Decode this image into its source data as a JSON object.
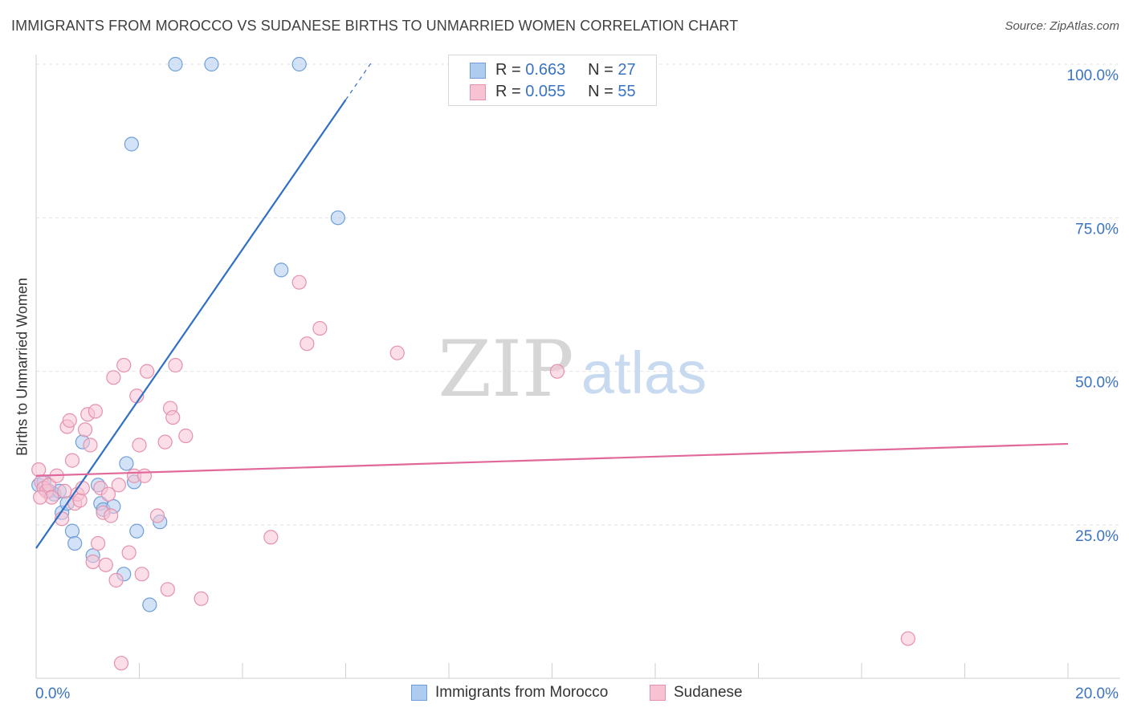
{
  "header": {
    "title": "IMMIGRANTS FROM MOROCCO VS SUDANESE BIRTHS TO UNMARRIED WOMEN CORRELATION CHART",
    "source": "Source: ZipAtlas.com"
  },
  "watermark": {
    "zip": "ZIP",
    "atlas": "atlas"
  },
  "stats_legend": [
    {
      "r_label": "R =",
      "r_value": "0.663",
      "n_label": "N =",
      "n_value": "27",
      "color": "#aecbf0",
      "border": "#6f9fd8"
    },
    {
      "r_label": "R =",
      "r_value": "0.055",
      "n_label": "N =",
      "n_value": "55",
      "color": "#f7c3d3",
      "border": "#e591ad"
    }
  ],
  "chart_data": {
    "type": "scatter",
    "title": "IMMIGRANTS FROM MOROCCO VS SUDANESE BIRTHS TO UNMARRIED WOMEN CORRELATION CHART",
    "xlabel": "",
    "ylabel": "Births to Unmarried Women",
    "xlim": [
      0,
      20
    ],
    "ylim": [
      0,
      105
    ],
    "x_ticks": [
      0,
      2,
      4,
      6,
      8,
      10,
      12,
      14,
      16,
      18,
      20
    ],
    "x_tick_labels": [
      {
        "value": 0,
        "label": "0.0%"
      },
      {
        "value": 20,
        "label": "20.0%"
      }
    ],
    "y_tick_labels": [
      {
        "value": 25,
        "label": "25.0%"
      },
      {
        "value": 50,
        "label": "50.0%"
      },
      {
        "value": 75,
        "label": "75.0%"
      },
      {
        "value": 100,
        "label": "100.0%"
      }
    ],
    "gridlines": [
      25,
      50,
      75,
      100
    ],
    "series": [
      {
        "name": "Immigrants from Morocco",
        "color": "#aecbf0",
        "stroke": "#6f9fd8",
        "line_color": "#2f6fc4",
        "trend": {
          "x0": 0,
          "y0": 21.2,
          "x1": 6.0,
          "y1": 94.2,
          "dash_to_x": 6.5,
          "dash_to_y": 100.3
        },
        "points": [
          [
            0.05,
            31.5
          ],
          [
            0.15,
            32
          ],
          [
            0.25,
            30.5
          ],
          [
            0.35,
            30
          ],
          [
            0.45,
            30.5
          ],
          [
            0.5,
            27
          ],
          [
            0.6,
            28.5
          ],
          [
            0.7,
            24
          ],
          [
            0.75,
            22
          ],
          [
            0.9,
            38.5
          ],
          [
            1.1,
            20
          ],
          [
            1.2,
            31.5
          ],
          [
            1.25,
            28.5
          ],
          [
            1.3,
            27.5
          ],
          [
            1.5,
            28
          ],
          [
            1.7,
            17
          ],
          [
            1.75,
            35
          ],
          [
            1.85,
            87
          ],
          [
            1.9,
            32
          ],
          [
            1.95,
            24
          ],
          [
            2.2,
            12
          ],
          [
            2.4,
            25.5
          ],
          [
            2.7,
            100
          ],
          [
            3.4,
            100
          ],
          [
            4.75,
            66.5
          ],
          [
            5.1,
            100
          ],
          [
            5.85,
            75
          ]
        ]
      },
      {
        "name": "Sudanese",
        "color": "#f7c3d3",
        "stroke": "#e591ad",
        "line_color": "#e0689a",
        "trend": {
          "x0": 0,
          "y0": 33.0,
          "x1": 20,
          "y1": 38.2
        },
        "points": [
          [
            0.05,
            34
          ],
          [
            0.1,
            32
          ],
          [
            0.15,
            31
          ],
          [
            0.2,
            30.5
          ],
          [
            0.25,
            31.5
          ],
          [
            0.3,
            29.5
          ],
          [
            0.4,
            33
          ],
          [
            0.5,
            26
          ],
          [
            0.55,
            30.5
          ],
          [
            0.6,
            41
          ],
          [
            0.65,
            42
          ],
          [
            0.7,
            35.5
          ],
          [
            0.75,
            28.5
          ],
          [
            0.8,
            30
          ],
          [
            0.85,
            29
          ],
          [
            0.9,
            31
          ],
          [
            0.95,
            40.5
          ],
          [
            1.0,
            43
          ],
          [
            1.05,
            38
          ],
          [
            1.1,
            19
          ],
          [
            1.15,
            43.5
          ],
          [
            1.2,
            22
          ],
          [
            1.25,
            31
          ],
          [
            1.3,
            27
          ],
          [
            1.35,
            18.5
          ],
          [
            1.4,
            30
          ],
          [
            1.45,
            26.5
          ],
          [
            1.5,
            49
          ],
          [
            1.55,
            16
          ],
          [
            1.6,
            31.5
          ],
          [
            1.65,
            2.5
          ],
          [
            1.7,
            51
          ],
          [
            1.8,
            20.5
          ],
          [
            1.9,
            33
          ],
          [
            1.95,
            46
          ],
          [
            2.0,
            38
          ],
          [
            2.05,
            17
          ],
          [
            2.1,
            33
          ],
          [
            2.15,
            50
          ],
          [
            2.35,
            26.5
          ],
          [
            2.5,
            38.5
          ],
          [
            2.55,
            14.5
          ],
          [
            2.6,
            44
          ],
          [
            2.65,
            42.5
          ],
          [
            2.7,
            51
          ],
          [
            2.9,
            39.5
          ],
          [
            3.2,
            13
          ],
          [
            4.55,
            23
          ],
          [
            5.1,
            64.5
          ],
          [
            5.25,
            54.5
          ],
          [
            5.5,
            57
          ],
          [
            7.0,
            53
          ],
          [
            10.1,
            50
          ],
          [
            16.9,
            6.5
          ],
          [
            0.08,
            29.5
          ]
        ]
      }
    ]
  }
}
